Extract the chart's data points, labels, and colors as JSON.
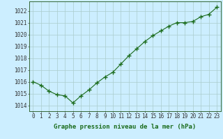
{
  "x": [
    0,
    1,
    2,
    3,
    4,
    5,
    6,
    7,
    8,
    9,
    10,
    11,
    12,
    13,
    14,
    15,
    16,
    17,
    18,
    19,
    20,
    21,
    22,
    23
  ],
  "y": [
    1016.0,
    1015.7,
    1015.2,
    1014.9,
    1014.8,
    1014.2,
    1014.8,
    1015.3,
    1015.9,
    1016.4,
    1016.8,
    1017.5,
    1018.2,
    1018.8,
    1019.4,
    1019.9,
    1020.3,
    1020.7,
    1021.0,
    1021.0,
    1021.1,
    1021.5,
    1021.7,
    1022.3
  ],
  "line_color": "#1a6b1a",
  "marker": "+",
  "marker_size": 4.0,
  "marker_linewidth": 1.0,
  "line_width": 0.8,
  "background_color": "#cceeff",
  "grid_color": "#aacccc",
  "xlabel": "Graphe pression niveau de la mer (hPa)",
  "xlabel_fontsize": 6.5,
  "ylabel_ticks": [
    1014,
    1015,
    1016,
    1017,
    1018,
    1019,
    1020,
    1021,
    1022
  ],
  "xlim": [
    -0.5,
    23.5
  ],
  "ylim": [
    1013.5,
    1022.8
  ],
  "tick_fontsize": 5.5,
  "xlabel_bold": true,
  "fig_width": 3.2,
  "fig_height": 2.0,
  "dpi": 100
}
